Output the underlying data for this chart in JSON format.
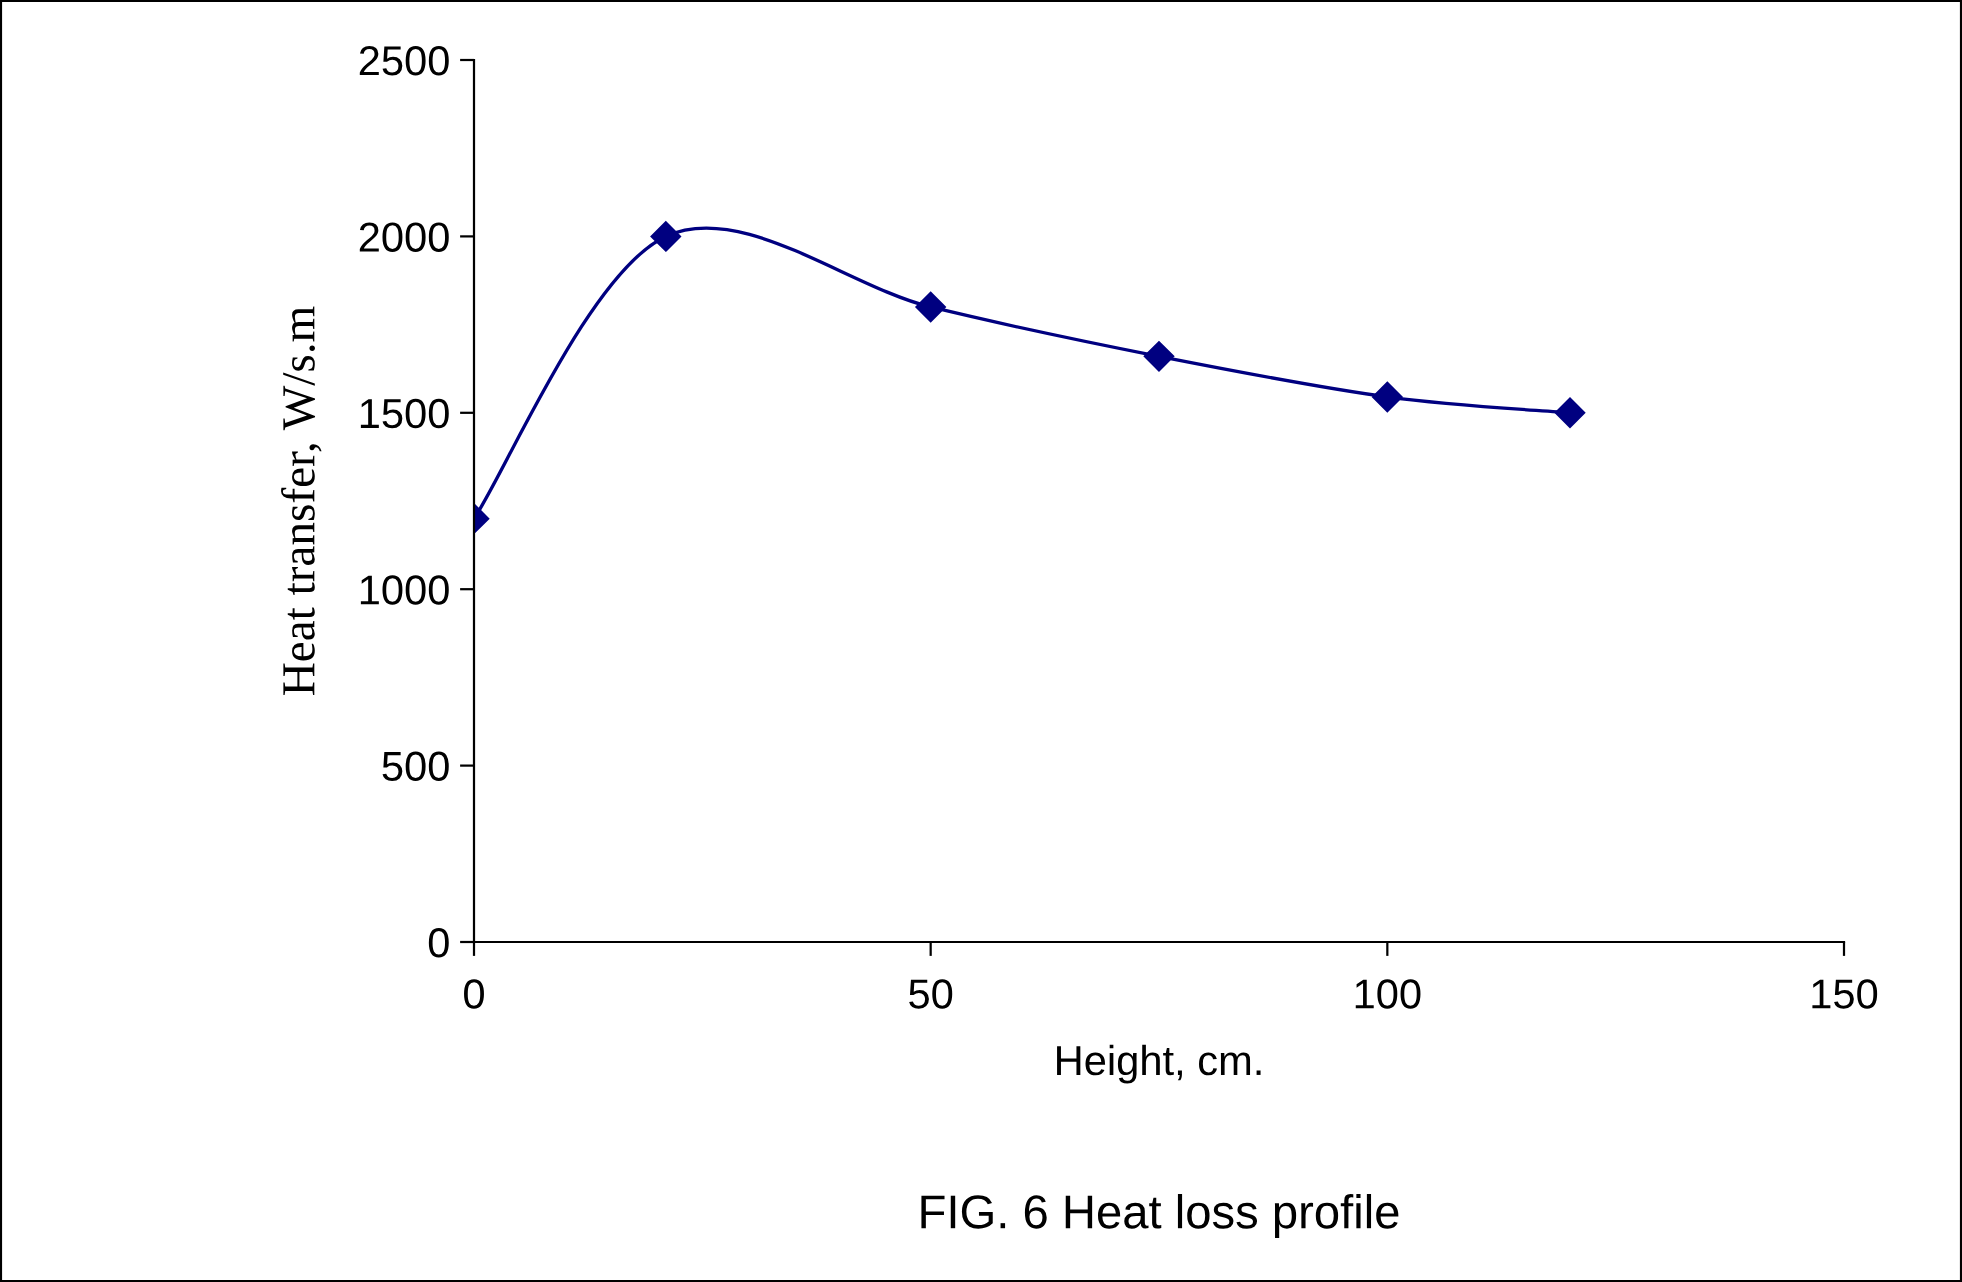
{
  "chart_data": {
    "type": "line",
    "title": "FIG. 6 Heat loss profile",
    "xlabel": "Height, cm.",
    "ylabel": "Heat transfer, W/s.m",
    "x": [
      0,
      21,
      50,
      75,
      100,
      120
    ],
    "series": [
      {
        "color": "#000080",
        "values": [
          1200,
          2000,
          1800,
          1660,
          1545,
          1500
        ]
      }
    ],
    "xlim": [
      0,
      150
    ],
    "xticks": [
      0,
      50,
      100,
      150
    ],
    "ylim": [
      0,
      2500
    ],
    "yticks": [
      0,
      500,
      1000,
      1500,
      2000,
      2500
    ],
    "grid": false,
    "marker": "diamond",
    "line_style": "solid"
  }
}
